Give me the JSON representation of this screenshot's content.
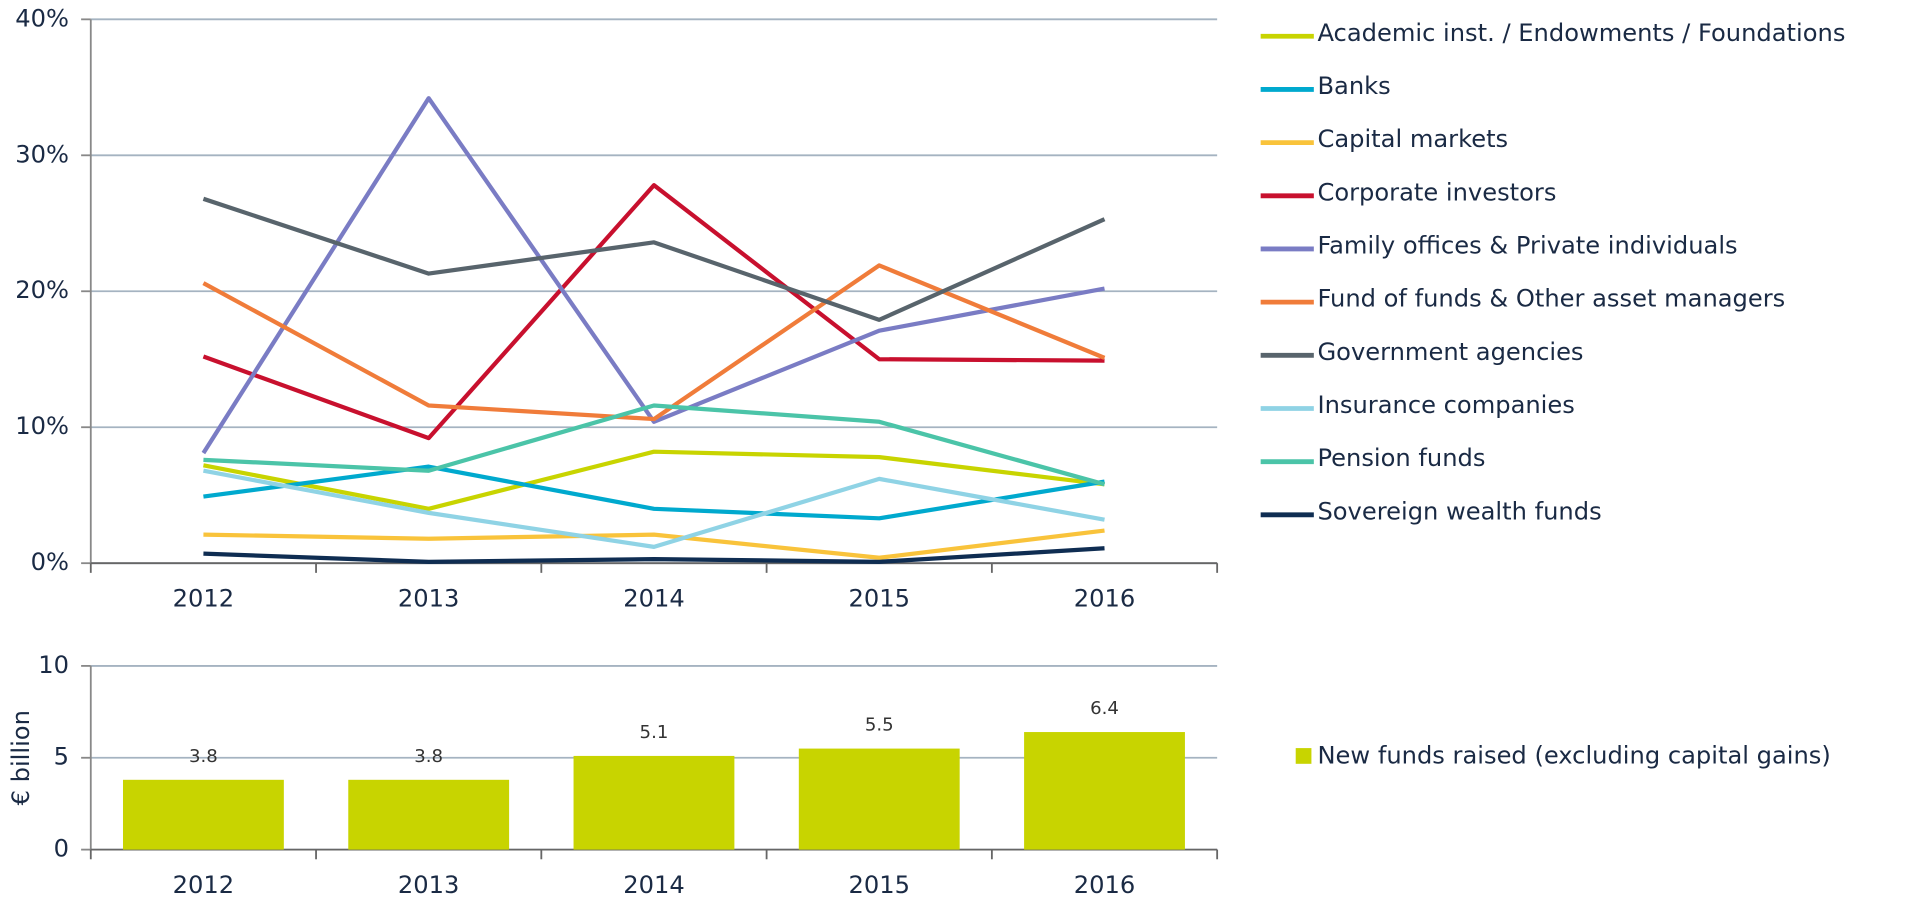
{
  "chart_data": [
    {
      "type": "line",
      "categories": [
        "2012",
        "2013",
        "2014",
        "2015",
        "2016"
      ],
      "ylim": [
        0,
        40
      ],
      "yticks": [
        {
          "value": 0,
          "label": "0%"
        },
        {
          "value": 10,
          "label": "10%"
        },
        {
          "value": 20,
          "label": "20%"
        },
        {
          "value": 30,
          "label": "30%"
        },
        {
          "value": 40,
          "label": "40%"
        }
      ],
      "grid": true,
      "legend": "right",
      "series": [
        {
          "name": "Academic inst. / Endowments / Foundations",
          "color": "#c8d400",
          "values": [
            7.2,
            4.0,
            8.2,
            7.8,
            5.8
          ]
        },
        {
          "name": "Banks",
          "color": "#00a9ce",
          "values": [
            4.9,
            7.1,
            4.0,
            3.3,
            6.0
          ]
        },
        {
          "name": "Capital markets",
          "color": "#f9c33b",
          "values": [
            2.1,
            1.8,
            2.1,
            0.4,
            2.4
          ]
        },
        {
          "name": "Corporate investors",
          "color": "#c8102e",
          "values": [
            15.2,
            9.2,
            27.8,
            15.0,
            14.9
          ]
        },
        {
          "name": "Family offices & Private individuals",
          "color": "#7a7cc4",
          "values": [
            8.1,
            34.2,
            10.4,
            17.1,
            20.2
          ]
        },
        {
          "name": "Fund of funds & Other asset managers",
          "color": "#f07c3a",
          "values": [
            20.6,
            11.6,
            10.6,
            21.9,
            15.1
          ]
        },
        {
          "name": "Government agencies",
          "color": "#58646c",
          "values": [
            26.8,
            21.3,
            23.6,
            17.9,
            25.3
          ]
        },
        {
          "name": "Insurance companies",
          "color": "#8fd3e5",
          "values": [
            6.8,
            3.7,
            1.2,
            6.2,
            3.2
          ]
        },
        {
          "name": "Pension funds",
          "color": "#4bc4a8",
          "values": [
            7.6,
            6.8,
            11.6,
            10.4,
            5.8
          ]
        },
        {
          "name": "Sovereign wealth funds",
          "color": "#0f2d52",
          "values": [
            0.7,
            0.1,
            0.3,
            0.1,
            1.1
          ]
        }
      ]
    },
    {
      "type": "bar",
      "y_label": "€ billion",
      "categories": [
        "2012",
        "2013",
        "2014",
        "2015",
        "2016"
      ],
      "ylim": [
        0,
        10
      ],
      "yticks": [
        0,
        5,
        10
      ],
      "grid": true,
      "legend": "right",
      "series": [
        {
          "name": "New funds raised (excluding capital gains)",
          "color": "#c8d400",
          "values": [
            3.8,
            3.8,
            5.1,
            5.5,
            6.4
          ]
        }
      ]
    }
  ]
}
